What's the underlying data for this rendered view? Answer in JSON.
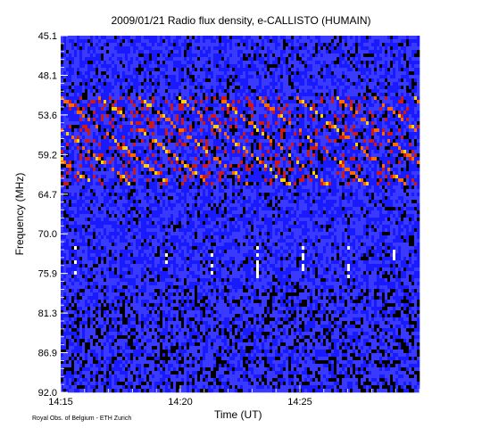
{
  "chart_data": {
    "type": "heatmap",
    "title": "2009/01/21  Radio flux density, e-CALLISTO (HUMAIN)",
    "xlabel": "Time (UT)",
    "ylabel": "Frequency (MHz)",
    "y_ticks": [
      "45.1",
      "48.1",
      "53.6",
      "59.2",
      "64.7",
      "70.0",
      "75.9",
      "81.3",
      "86.9",
      "92.0"
    ],
    "x_ticks": [
      "14:15",
      "14:20",
      "14:25"
    ],
    "x_range": [
      "14:15",
      "14:30"
    ],
    "y_range": [
      45.1,
      92.0
    ],
    "colormap": [
      "#000000",
      "#1a1aff",
      "#3a3aff",
      "#cc1a1a",
      "#ff6a00",
      "#ffd200",
      "#ffffff"
    ],
    "background_color": "#1010d8",
    "credit": "Royal Obs. of Belgium - ETH Zurich"
  }
}
